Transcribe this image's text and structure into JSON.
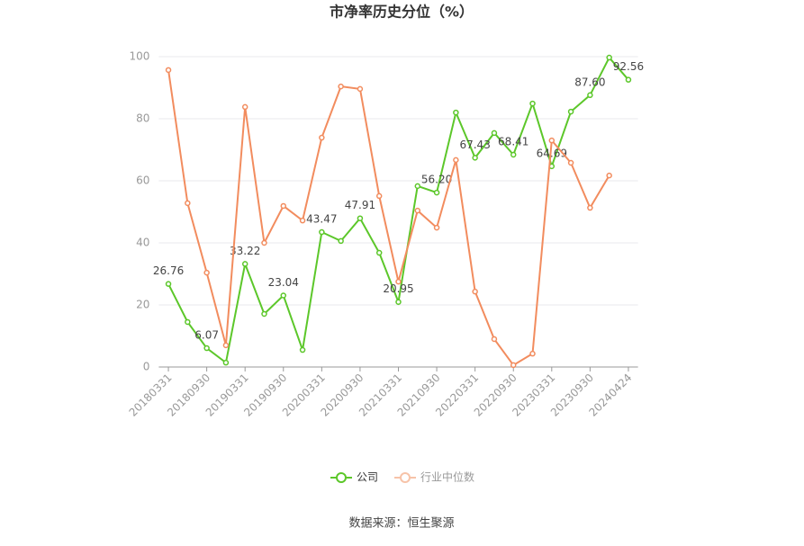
{
  "chart_data": {
    "type": "line",
    "title": "市净率历史分位（%）",
    "source": "数据来源：恒生聚源",
    "categories": [
      "20180331",
      null,
      "20180930",
      null,
      "20190331",
      null,
      "20190930",
      null,
      "20200331",
      null,
      "20200930",
      null,
      "20210331",
      null,
      "20210930",
      null,
      "20220331",
      null,
      "20220930",
      null,
      "20230331",
      null,
      "20230930",
      null,
      "20240424"
    ],
    "series": [
      {
        "name": "公司",
        "color": "#5cc72a",
        "values": [
          26.76,
          14.5,
          6.07,
          1.4,
          33.22,
          17.1,
          23.04,
          5.5,
          43.47,
          40.6,
          47.91,
          36.8,
          20.95,
          58.3,
          56.2,
          82.0,
          67.43,
          75.4,
          68.41,
          84.9,
          64.69,
          82.3,
          87.6,
          99.7,
          92.56
        ],
        "value_labels": [
          "26.76",
          null,
          "6.07",
          null,
          "33.22",
          null,
          "23.04",
          null,
          "43.47",
          null,
          "47.91",
          null,
          "20.95",
          null,
          "56.20",
          null,
          "67.43",
          null,
          "68.41",
          null,
          "64.69",
          null,
          "87.60",
          null,
          "92.56"
        ]
      },
      {
        "name": "行业中位数",
        "color": "#f28c5e",
        "values": [
          95.7,
          52.8,
          30.4,
          7.0,
          83.8,
          40.0,
          51.9,
          47.2,
          73.9,
          90.4,
          89.6,
          55.1,
          27.5,
          50.4,
          44.9,
          66.7,
          24.3,
          9.0,
          0.6,
          4.3,
          73.0,
          65.8,
          51.3,
          61.7,
          null
        ]
      }
    ],
    "ylim": [
      0,
      100
    ],
    "yticks": [
      0,
      20,
      40,
      60,
      80,
      100
    ],
    "grid": true
  }
}
